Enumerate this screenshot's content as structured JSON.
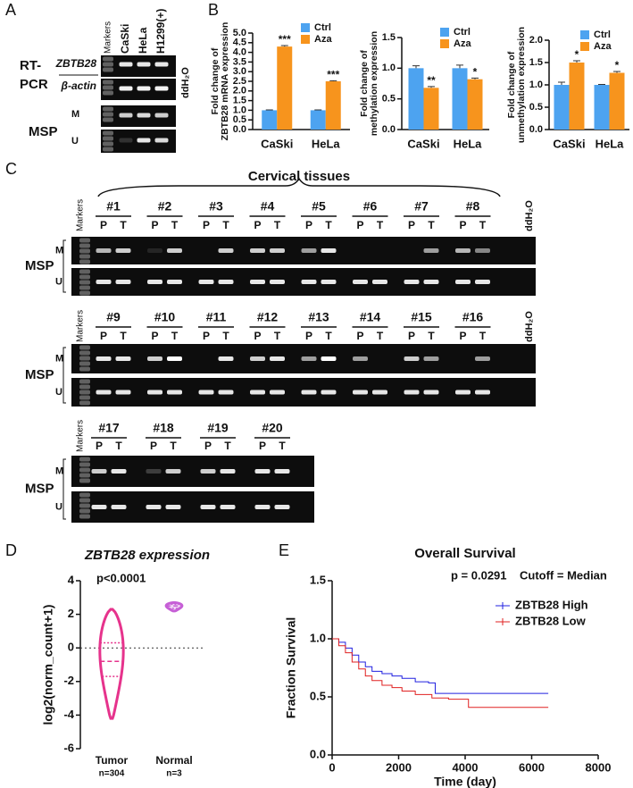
{
  "panel_a": {
    "letter": "A",
    "markers": "Markers",
    "lanes": [
      "CaSki",
      "HeLa",
      "H1299(+)"
    ],
    "blank": "ddH₂O",
    "rt_pcr": [
      "RT-",
      "PCR"
    ],
    "genes": [
      "ZBTB28",
      "β-actin"
    ],
    "msp": "MSP",
    "rows": [
      "M",
      "U"
    ]
  },
  "panel_c": {
    "letter": "C",
    "title": "Cervical tissues",
    "markers": "Markers",
    "blank": "ddH₂O",
    "msp": "MSP",
    "rows": [
      "M",
      "U"
    ],
    "lanes": [
      "P",
      "T"
    ],
    "groups": [
      [
        "#1",
        "#2",
        "#3",
        "#4",
        "#5",
        "#6",
        "#7",
        "#8"
      ],
      [
        "#9",
        "#10",
        "#11",
        "#12",
        "#13",
        "#14",
        "#15",
        "#16"
      ],
      [
        "#17",
        "#18",
        "#19",
        "#20"
      ]
    ]
  },
  "chart_data": [
    {
      "panel": "B",
      "type": "bar",
      "ylabel": [
        "Fold change of",
        "ZBTB28 mRNA expression"
      ],
      "categories": [
        "CaSki",
        "HeLa"
      ],
      "series": [
        {
          "name": "Ctrl",
          "color": "#4da3f0",
          "values": [
            1,
            1
          ],
          "errors": [
            0.02,
            0.02
          ]
        },
        {
          "name": "Aza",
          "color": "#f7941d",
          "values": [
            4.3,
            2.5
          ],
          "errors": [
            0.05,
            0.03
          ]
        }
      ],
      "significance": [
        "***",
        "***"
      ],
      "ylim": [
        0,
        5
      ],
      "yticks": [
        {
          "value": 0,
          "label": "0.0"
        },
        {
          "value": 0.5,
          "label": "0.5"
        },
        {
          "value": 1,
          "label": "1.0"
        },
        {
          "value": 1.5,
          "label": "1.5"
        },
        {
          "value": 2,
          "label": "2.0"
        },
        {
          "value": 2.5,
          "label": "2.5"
        },
        {
          "value": 3,
          "label": "3.0"
        },
        {
          "value": 3.5,
          "label": "3.5"
        },
        {
          "value": 4,
          "label": "4.0"
        },
        {
          "value": 4.5,
          "label": "4.5"
        },
        {
          "value": 5,
          "label": "5.0"
        }
      ]
    },
    {
      "panel": "",
      "type": "bar",
      "ylabel": [
        "Fold change of",
        "methylation expression"
      ],
      "categories": [
        "CaSki",
        "HeLa"
      ],
      "series": [
        {
          "name": "Ctrl",
          "color": "#4da3f0",
          "values": [
            1,
            1
          ],
          "errors": [
            0.04,
            0.05
          ]
        },
        {
          "name": "Aza",
          "color": "#f7941d",
          "values": [
            0.68,
            0.82
          ],
          "errors": [
            0.02,
            0.02
          ]
        }
      ],
      "significance": [
        "**",
        "*"
      ],
      "ylim": [
        0,
        1.5
      ],
      "yticks": [
        {
          "value": 0,
          "label": "0.0"
        },
        {
          "value": 0.5,
          "label": "0.5"
        },
        {
          "value": 1,
          "label": "1.0"
        },
        {
          "value": 1.5,
          "label": "1.5"
        }
      ]
    },
    {
      "panel": "",
      "type": "bar",
      "ylabel": [
        "Fold change of",
        "unmethylation expression"
      ],
      "categories": [
        "CaSki",
        "HeLa"
      ],
      "series": [
        {
          "name": "Ctrl",
          "color": "#4da3f0",
          "values": [
            1,
            1
          ],
          "errors": [
            0.06,
            0.01
          ]
        },
        {
          "name": "Aza",
          "color": "#f7941d",
          "values": [
            1.5,
            1.27
          ],
          "errors": [
            0.04,
            0.03
          ]
        }
      ],
      "significance": [
        "*",
        "*"
      ],
      "ylim": [
        0,
        2
      ],
      "yticks": [
        {
          "value": 0,
          "label": "0.0"
        },
        {
          "value": 0.5,
          "label": "0.5"
        },
        {
          "value": 1,
          "label": "1.0"
        },
        {
          "value": 1.5,
          "label": "1.5"
        },
        {
          "value": 2,
          "label": "2.0"
        }
      ]
    },
    {
      "panel": "D",
      "type": "violin",
      "title": "ZBTB28 expression",
      "annotation": "p<0.0001",
      "ylabel": "log2(norm_count+1)",
      "categories": [
        "Tumor",
        "Normal"
      ],
      "counts": [
        "n=304",
        "n=3"
      ],
      "violins": [
        {
          "color": "#e6338c",
          "min": -4.2,
          "q1": -1.7,
          "median": -0.8,
          "q3": 0.3,
          "max": 2.3
        },
        {
          "color": "#c65fd6",
          "min": 2.2,
          "q1": 2.35,
          "median": 2.5,
          "q3": 2.6,
          "max": 2.7
        }
      ],
      "hline": 0,
      "ylim": [
        -6,
        4
      ],
      "yticks": [
        -6,
        -4,
        -2,
        0,
        2,
        4
      ]
    },
    {
      "panel": "E",
      "type": "survival",
      "title": "Overall Survival",
      "annotation": [
        "p = 0.0291",
        "Cutoff = Median"
      ],
      "xlabel": "Time (day)",
      "ylabel": "Fraction Survival",
      "xlim": [
        0,
        8000
      ],
      "xticks": [
        0,
        2000,
        4000,
        6000,
        8000
      ],
      "ylim": [
        0,
        1.5
      ],
      "yticks": [
        {
          "value": 0,
          "label": "0.0"
        },
        {
          "value": 0.5,
          "label": "0.5"
        },
        {
          "value": 1,
          "label": "1.0"
        },
        {
          "value": 1.5,
          "label": "1.5"
        }
      ],
      "legend": "upper right",
      "series": [
        {
          "name": "ZBTB28 High",
          "color": "#2020e0",
          "x": [
            0,
            200,
            400,
            600,
            800,
            1000,
            1200,
            1500,
            1800,
            2100,
            2500,
            2900,
            3100,
            3500,
            4000,
            5000,
            6500
          ],
          "values": [
            1.0,
            0.97,
            0.92,
            0.86,
            0.8,
            0.76,
            0.72,
            0.7,
            0.68,
            0.66,
            0.63,
            0.62,
            0.53,
            0.53,
            0.53,
            0.53,
            0.53
          ]
        },
        {
          "name": "ZBTB28 Low",
          "color": "#e02020",
          "x": [
            0,
            200,
            400,
            600,
            800,
            1000,
            1200,
            1500,
            1800,
            2100,
            2500,
            3000,
            3500,
            4100,
            5000,
            6500
          ],
          "values": [
            1.0,
            0.94,
            0.88,
            0.8,
            0.74,
            0.68,
            0.64,
            0.6,
            0.58,
            0.55,
            0.52,
            0.49,
            0.48,
            0.41,
            0.41,
            0.41
          ]
        }
      ]
    }
  ]
}
